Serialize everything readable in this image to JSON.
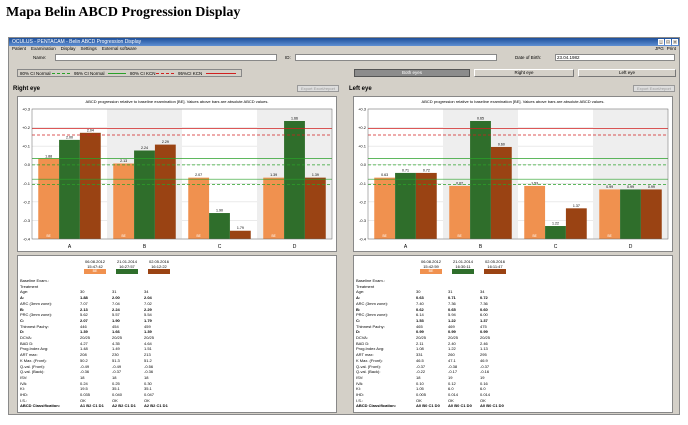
{
  "figure_title": "Mapa Belin ABCD Progression Display",
  "window": {
    "title": "OCULUS - PENTACAM - Belin ABCD Progression Display",
    "menu": [
      "Patient",
      "Examination",
      "Display",
      "Settings",
      "External software"
    ],
    "menu_right": [
      "JPG",
      "Print"
    ]
  },
  "patient": {
    "name_label": "Name:",
    "name_value": "",
    "id_label": "ID:",
    "id_value": "",
    "dob_label": "Date of Birth:",
    "dob_value": "23.04.1982"
  },
  "legend": {
    "items": [
      {
        "label": "80% CI Normal",
        "color": "#2aa12a",
        "dash": true
      },
      {
        "label": "95% CI Normal",
        "color": "#2aa12a",
        "dash": false
      },
      {
        "label": "80% CI KCN",
        "color": "#d12020",
        "dash": true
      },
      {
        "label": "95%CI KCN",
        "color": "#d12020",
        "dash": false
      }
    ]
  },
  "toolbar": {
    "both_eyes": "Both eyes",
    "right_eye": "Right eye",
    "left_eye": "Left eye"
  },
  "panels": [
    {
      "id": "right",
      "title": "Right eye",
      "excel_label": "Export Excel/report",
      "chart_subtitle": "ABCD progression relative to baseline examination [BE]. Values above bars are absolute ABCD values.",
      "chart_data": {
        "type": "bar",
        "categories": [
          "A",
          "B",
          "C",
          "D"
        ],
        "ylim": [
          -0.4,
          0.3
        ],
        "y_ticks": [
          "+0.3",
          "+0.2",
          "+0.1",
          "0.0",
          "-0.1",
          "-0.2",
          "-0.3",
          "-0.4"
        ],
        "series": [
          {
            "values_pct": [
              0.68,
              0.64,
              0.52,
              0.52
            ],
            "labels": [
              "1.88",
              "2.13",
              "2.07",
              "1.39"
            ],
            "tags": [
              "BE",
              "BE",
              "BE",
              "BE"
            ]
          },
          {
            "values_pct": [
              0.84,
              0.75,
              0.22,
              1.0
            ],
            "labels": [
              "2.00",
              "2.24",
              "1.90",
              "1.66"
            ],
            "tags": [
              "",
              "",
              "",
              ""
            ]
          },
          {
            "values_pct": [
              0.9,
              0.8,
              0.07,
              0.52
            ],
            "labels": [
              "2.04",
              "2.29",
              "1.79",
              "1.39"
            ],
            "tags": [
              "",
              "",
              "",
              ""
            ]
          }
        ],
        "colors": [
          "#f0914f",
          "#2f6e2b",
          "#9a4313"
        ]
      },
      "columns": [
        {
          "date": "06.08.2012",
          "time": "15:47:42",
          "code": "BE"
        },
        {
          "date": "21.01.2014",
          "time": "16:27:57",
          "code": ""
        },
        {
          "date": "02.05.2016",
          "time": "16:12:22",
          "code": ""
        }
      ],
      "rows": [
        {
          "label": "Baseline Exam.:",
          "v": [
            "",
            "",
            ""
          ],
          "bold": false
        },
        {
          "label": "Treatment",
          "v": [
            "",
            "",
            ""
          ],
          "bold": false
        },
        {
          "label": "Age:",
          "v": [
            "30",
            "31",
            "34"
          ],
          "bold": false
        },
        {
          "label": "A:",
          "v": [
            "1.88",
            "2.00",
            "2.04"
          ],
          "bold": true
        },
        {
          "label": "ARC (3mm zone):",
          "v": [
            "7.07",
            "7.04",
            "7.02"
          ],
          "bold": false
        },
        {
          "label": "B:",
          "v": [
            "2.13",
            "2.24",
            "2.29"
          ],
          "bold": true
        },
        {
          "label": "PRC (3mm zone):",
          "v": [
            "5.62",
            "5.57",
            "5.54"
          ],
          "bold": false
        },
        {
          "label": "C:",
          "v": [
            "2.07",
            "1.90",
            "1.79"
          ],
          "bold": true
        },
        {
          "label": "Thinnest Pachy:",
          "v": [
            "446",
            "454",
            "459"
          ],
          "bold": false
        },
        {
          "label": "D:",
          "v": [
            "1.39",
            "1.66",
            "1.39"
          ],
          "bold": true
        },
        {
          "label": "DCVA:",
          "v": [
            "20/25",
            "20/25",
            "20/25"
          ],
          "bold": false
        },
        {
          "label": "BAD D:",
          "v": [
            "4.27",
            "4.35",
            "4.64"
          ],
          "bold": false
        },
        {
          "label": "Prog.Index Avg:",
          "v": [
            "1.48",
            "1.49",
            "1.51"
          ],
          "bold": false
        },
        {
          "label": "ART max:",
          "v": [
            "208",
            "230",
            "213"
          ],
          "bold": false
        },
        {
          "label": "K Max. (Front):",
          "v": [
            "50.2",
            "51.3",
            "51.2"
          ],
          "bold": false
        },
        {
          "label": "Q-val. (Front):",
          "v": [
            "-0.49",
            "-0.49",
            "-0.56"
          ],
          "bold": false
        },
        {
          "label": "Q-val. (Back):",
          "v": [
            "-0.36",
            "-0.37",
            "-0.36"
          ],
          "bold": false
        },
        {
          "label": "ISV:",
          "v": [
            "18",
            "18",
            "18"
          ],
          "bold": false
        },
        {
          "label": "IVA:",
          "v": [
            "0.24",
            "0.25",
            "0.30"
          ],
          "bold": false
        },
        {
          "label": "KI:",
          "v": [
            "19.5",
            "35.1",
            "35.1"
          ],
          "bold": false
        },
        {
          "label": "IHD:",
          "v": [
            "0.035",
            "0.040",
            "0.047"
          ],
          "bold": false
        },
        {
          "label": "I.S.:",
          "v": [
            "OK",
            "OK",
            "OK"
          ],
          "bold": false
        },
        {
          "label": "ABCD Classification:",
          "v": [
            "A1 B2 C1 D1",
            "A2 B2 C1 D1",
            "A2 B2 C1 D1"
          ],
          "bold": true
        }
      ]
    },
    {
      "id": "left",
      "title": "Left eye",
      "excel_label": "Export Excel/report",
      "chart_subtitle": "ABCD progression relative to baseline examination [BE]. Values above bars are absolute ABCD values.",
      "chart_data": {
        "type": "bar",
        "categories": [
          "A",
          "B",
          "C",
          "D"
        ],
        "ylim": [
          -0.4,
          0.3
        ],
        "y_ticks": [
          "+0.3",
          "+0.2",
          "+0.1",
          "0.0",
          "-0.1",
          "-0.2",
          "-0.3",
          "-0.4"
        ],
        "series": [
          {
            "values_pct": [
              0.52,
              0.45,
              0.45,
              0.42
            ],
            "labels": [
              "0.63",
              "0.62",
              "1.53",
              "0.99"
            ],
            "tags": [
              "BE",
              "BE",
              "BE",
              "BE"
            ]
          },
          {
            "values_pct": [
              0.56,
              1.0,
              0.11,
              0.42
            ],
            "labels": [
              "0.71",
              "0.65",
              "1.22",
              "0.99"
            ],
            "tags": [
              "",
              "",
              "",
              ""
            ]
          },
          {
            "values_pct": [
              0.56,
              0.78,
              0.26,
              0.42
            ],
            "labels": [
              "0.72",
              "0.60",
              "1.37",
              "0.99"
            ],
            "tags": [
              "",
              "",
              "",
              ""
            ]
          }
        ],
        "colors": [
          "#f0914f",
          "#2f6e2b",
          "#9a4313"
        ]
      },
      "columns": [
        {
          "date": "06.08.2012",
          "time": "15:42:59",
          "code": "BE"
        },
        {
          "date": "21.01.2014",
          "time": "16:30:11",
          "code": ""
        },
        {
          "date": "02.05.2016",
          "time": "16:11:47",
          "code": ""
        }
      ],
      "rows": [
        {
          "label": "Baseline Exam.:",
          "v": [
            "",
            "",
            ""
          ],
          "bold": false
        },
        {
          "label": "Treatment",
          "v": [
            "",
            "",
            ""
          ],
          "bold": false
        },
        {
          "label": "Age:",
          "v": [
            "30",
            "31",
            "34"
          ],
          "bold": false
        },
        {
          "label": "A:",
          "v": [
            "0.63",
            "0.71",
            "0.72"
          ],
          "bold": true
        },
        {
          "label": "ARC (3mm zone):",
          "v": [
            "7.40",
            "7.36",
            "7.36"
          ],
          "bold": false
        },
        {
          "label": "B:",
          "v": [
            "0.62",
            "0.65",
            "0.60"
          ],
          "bold": true
        },
        {
          "label": "PRC (3mm zone):",
          "v": [
            "6.14",
            "5.94",
            "6.00"
          ],
          "bold": false
        },
        {
          "label": "C:",
          "v": [
            "1.53",
            "1.22",
            "1.37"
          ],
          "bold": true
        },
        {
          "label": "Thinnest Pachy:",
          "v": [
            "465",
            "469",
            "475"
          ],
          "bold": false
        },
        {
          "label": "D:",
          "v": [
            "0.99",
            "0.99",
            "0.99"
          ],
          "bold": true
        },
        {
          "label": "DCVA:",
          "v": [
            "20/25",
            "20/25",
            "20/25"
          ],
          "bold": false
        },
        {
          "label": "BAD D:",
          "v": [
            "2.11",
            "2.40",
            "2.46"
          ],
          "bold": false
        },
        {
          "label": "Prog.Index Avg:",
          "v": [
            "1.08",
            "1.22",
            "1.13"
          ],
          "bold": false
        },
        {
          "label": "ART max:",
          "v": [
            "331",
            "260",
            "295"
          ],
          "bold": false
        },
        {
          "label": "K Max. (Front):",
          "v": [
            "46.5",
            "47.1",
            "46.9"
          ],
          "bold": false
        },
        {
          "label": "Q-val. (Front):",
          "v": [
            "-0.37",
            "-0.38",
            "-0.37"
          ],
          "bold": false
        },
        {
          "label": "Q-val. (Back):",
          "v": [
            "-0.22",
            "-0.17",
            "-0.16"
          ],
          "bold": false
        },
        {
          "label": "ISV:",
          "v": [
            "18",
            "19",
            "19"
          ],
          "bold": false
        },
        {
          "label": "IVA:",
          "v": [
            "0.10",
            "0.12",
            "0.16"
          ],
          "bold": false
        },
        {
          "label": "KI:",
          "v": [
            "1.05",
            "6.0",
            "6.0"
          ],
          "bold": false
        },
        {
          "label": "IHD:",
          "v": [
            "0.005",
            "0.014",
            "0.014"
          ],
          "bold": false
        },
        {
          "label": "I.S.:",
          "v": [
            "OK",
            "OK",
            "OK"
          ],
          "bold": false
        },
        {
          "label": "ABCD Classification:",
          "v": [
            "A0 B0 C1 D0",
            "A0 B0 C1 D0",
            "A0 B0 C1 D0"
          ],
          "bold": true
        }
      ]
    }
  ]
}
